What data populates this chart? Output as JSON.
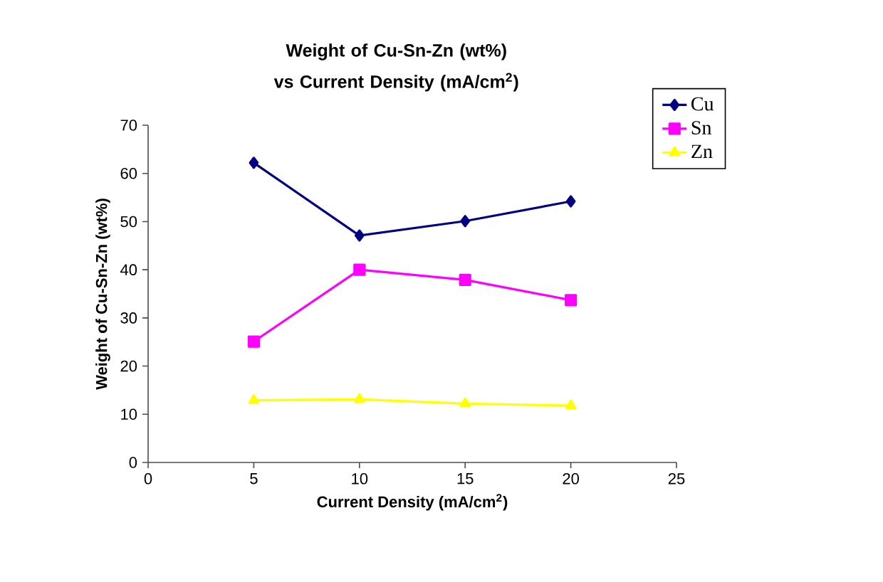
{
  "chart_data": {
    "type": "line",
    "title": "Weight of Cu-Sn-Zn (wt%) vs Current Density (mA/cm$^{2}$)",
    "xlabel": "Current Density (mA/cm$^{2}$)",
    "ylabel": "Weight of Cu-Sn-Zn (wt%)",
    "x": [
      5,
      10,
      15,
      20
    ],
    "series": [
      {
        "name": "Cu",
        "color": "#000080",
        "marker": "diamond",
        "values": [
          62.2,
          47.1,
          50.1,
          54.2
        ]
      },
      {
        "name": "Sn",
        "color": "#ff00ff",
        "marker": "square",
        "values": [
          25.1,
          40,
          37.9,
          33.7
        ]
      },
      {
        "name": "Zn",
        "color": "#ffff00",
        "marker": "triangle",
        "values": [
          12.9,
          13.1,
          12.2,
          11.8
        ]
      }
    ],
    "xlim": [
      0,
      25
    ],
    "xticks": [
      0,
      5,
      10,
      15,
      20,
      25
    ],
    "ylim": [
      0,
      70
    ],
    "yticks": [
      0,
      10,
      20,
      30,
      40,
      50,
      60,
      70
    ],
    "legend": "top right",
    "grid": false,
    "line_style": "solid"
  }
}
